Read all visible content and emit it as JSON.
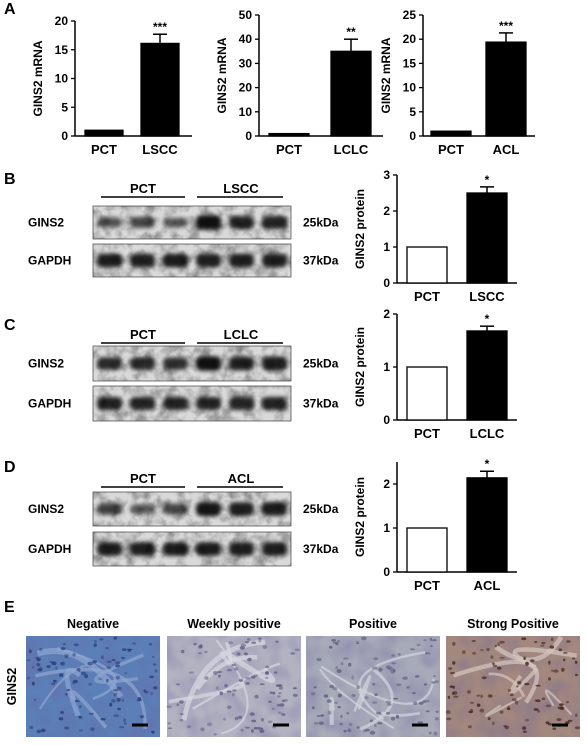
{
  "figure": {
    "panels": [
      {
        "letter": "A"
      },
      {
        "letter": "B"
      },
      {
        "letter": "C"
      },
      {
        "letter": "D"
      },
      {
        "letter": "E"
      }
    ],
    "blots": [
      {
        "group_left": "PCT",
        "group_right": "LSCC",
        "rows": [
          {
            "label": "GINS2",
            "kda": "25kDa",
            "intensity": [
              0.45,
              0.55,
              0.4,
              0.95,
              0.8,
              0.8
            ]
          },
          {
            "label": "GAPDH",
            "kda": "37kDa",
            "intensity": [
              0.85,
              0.85,
              0.85,
              0.85,
              0.85,
              0.85
            ]
          }
        ]
      },
      {
        "group_left": "PCT",
        "group_right": "LCLC",
        "rows": [
          {
            "label": "GINS2",
            "kda": "25kDa",
            "intensity": [
              0.75,
              0.75,
              0.72,
              0.95,
              0.85,
              0.85
            ]
          },
          {
            "label": "GAPDH",
            "kda": "37kDa",
            "intensity": [
              0.8,
              0.8,
              0.8,
              0.8,
              0.8,
              0.8
            ]
          }
        ]
      },
      {
        "group_left": "PCT",
        "group_right": "ACL",
        "rows": [
          {
            "label": "GINS2",
            "kda": "25kDa",
            "intensity": [
              0.6,
              0.4,
              0.55,
              0.9,
              0.85,
              0.85
            ]
          },
          {
            "label": "GAPDH",
            "kda": "37kDa",
            "intensity": [
              0.85,
              0.85,
              0.85,
              0.85,
              0.85,
              0.85
            ]
          }
        ]
      }
    ],
    "ihc": {
      "row_label": "GINS2",
      "stains": [
        {
          "label": "Negative",
          "stain": "negative",
          "color": "#5c7fb7"
        },
        {
          "label": "Weekly positive",
          "stain": "weak",
          "color": "#b2b3c1"
        },
        {
          "label": "Positive",
          "stain": "positive",
          "color": "#a7aab8"
        },
        {
          "label": "Strong Positive",
          "stain": "strong",
          "color": "#a2887e"
        }
      ]
    }
  },
  "chart_data": [
    {
      "type": "bar",
      "panel": "A",
      "categories": [
        "PCT",
        "LSCC"
      ],
      "values": [
        1,
        16.1
      ],
      "errors": [
        0,
        1.6
      ],
      "significance": [
        "",
        "***"
      ],
      "ylabel": "GINS2 mRNA",
      "ylim": [
        0,
        20
      ],
      "yticks": [
        0,
        5,
        10,
        15,
        20
      ],
      "fills": [
        "#000000",
        "#000000"
      ]
    },
    {
      "type": "bar",
      "panel": "A",
      "categories": [
        "PCT",
        "LCLC"
      ],
      "values": [
        1,
        35
      ],
      "errors": [
        0,
        5
      ],
      "significance": [
        "",
        "**"
      ],
      "ylabel": "GINS2 mRNA",
      "ylim": [
        0,
        50
      ],
      "yticks": [
        0,
        10,
        20,
        30,
        40,
        50
      ],
      "fills": [
        "#000000",
        "#000000"
      ]
    },
    {
      "type": "bar",
      "panel": "A",
      "categories": [
        "PCT",
        "ACL"
      ],
      "values": [
        1,
        19.4
      ],
      "errors": [
        0,
        1.9
      ],
      "significance": [
        "",
        "***"
      ],
      "ylabel": "GINS2 mRNA",
      "ylim": [
        0,
        25
      ],
      "yticks": [
        0,
        5,
        10,
        15,
        20,
        25
      ],
      "fills": [
        "#000000",
        "#000000"
      ]
    },
    {
      "type": "bar",
      "panel": "B",
      "categories": [
        "PCT",
        "LSCC"
      ],
      "values": [
        1,
        2.5
      ],
      "errors": [
        0,
        0.17
      ],
      "significance": [
        "",
        "*"
      ],
      "ylabel": "GINS2 protein",
      "ylim": [
        0,
        3
      ],
      "yticks": [
        0,
        1,
        2,
        3
      ],
      "fills": [
        "#ffffff",
        "#000000"
      ]
    },
    {
      "type": "bar",
      "panel": "C",
      "categories": [
        "PCT",
        "LCLC"
      ],
      "values": [
        1,
        1.68
      ],
      "errors": [
        0,
        0.09
      ],
      "significance": [
        "",
        "*"
      ],
      "ylabel": "GINS2 protein",
      "ylim": [
        0,
        2
      ],
      "yticks": [
        0,
        1,
        2
      ],
      "fills": [
        "#ffffff",
        "#000000"
      ]
    },
    {
      "type": "bar",
      "panel": "D",
      "categories": [
        "PCT",
        "ACL"
      ],
      "values": [
        1,
        2.14
      ],
      "errors": [
        0,
        0.15
      ],
      "significance": [
        "",
        "*"
      ],
      "ylabel": "GINS2 protein",
      "ylim": [
        0,
        2.5
      ],
      "yticks": [
        0,
        1,
        2
      ],
      "fills": [
        "#ffffff",
        "#000000"
      ]
    }
  ]
}
